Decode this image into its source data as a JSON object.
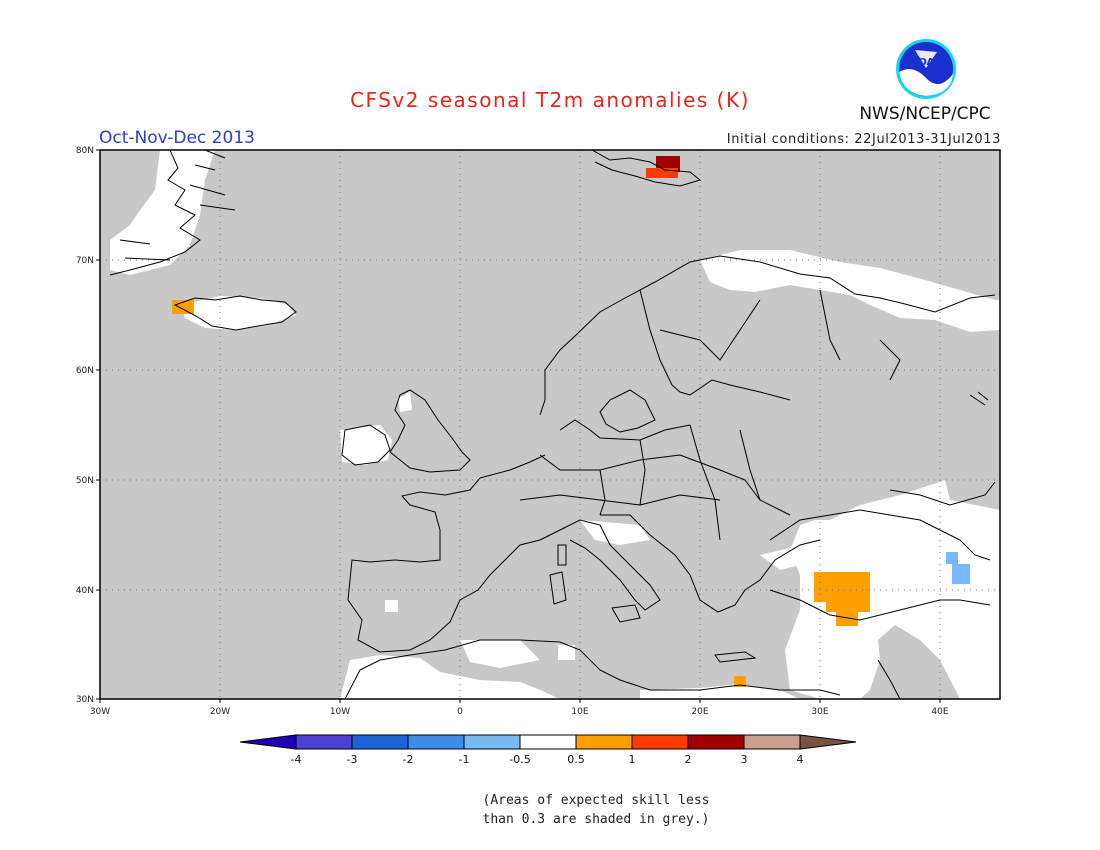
{
  "header": {
    "title": "CFSv2 seasonal T2m anomalies (K)",
    "period": "Oct-Nov-Dec 2013",
    "initial_conditions": "Initial conditions: 22Jul2013-31Jul2013",
    "agency": "NWS/NCEP/CPC",
    "logo_text": "NOAA"
  },
  "map": {
    "region": "Europe",
    "lon_range": [
      -30,
      45
    ],
    "lat_range": [
      30,
      80
    ],
    "grid": "dotted",
    "background_color": "#c8c8c8",
    "lat_labels": [
      "80N",
      "70N",
      "60N",
      "50N",
      "40N",
      "30N"
    ],
    "lon_labels": [
      "30W",
      "20W",
      "10W",
      "0",
      "10E",
      "20E",
      "30E",
      "40E"
    ],
    "anomalies": [
      {
        "lon": 17,
        "lat": 77,
        "category": "2 to 3 / 1 to 2",
        "color": "#a00000"
      },
      {
        "lon": -23,
        "lat": 64.6,
        "category": "0.5 to 1",
        "color": "#ff9f00"
      },
      {
        "lon": 32,
        "lat": 39,
        "category": "0.5 to 1",
        "color": "#ff9f00"
      },
      {
        "lon": 23.5,
        "lat": 31.5,
        "category": "0.5 to 1",
        "color": "#ff9f00"
      },
      {
        "lon": 41,
        "lat": 42,
        "category": "-1 to -0.5",
        "color": "#79b7ff"
      }
    ]
  },
  "colorbar": {
    "labels": [
      "-4",
      "-3",
      "-2",
      "-1",
      "-0.5",
      "0.5",
      "1",
      "2",
      "3",
      "4"
    ],
    "colors": [
      "#1e00b4",
      "#4c40d6",
      "#1a64d8",
      "#3c8ce8",
      "#7ab8f4",
      "#ffffff",
      "#ff9f00",
      "#ff3c00",
      "#a00000",
      "#c8a08c",
      "#7a5040"
    ]
  },
  "note": {
    "line1": "(Areas of expected skill less",
    "line2": "than 0.3 are shaded in grey.)"
  }
}
